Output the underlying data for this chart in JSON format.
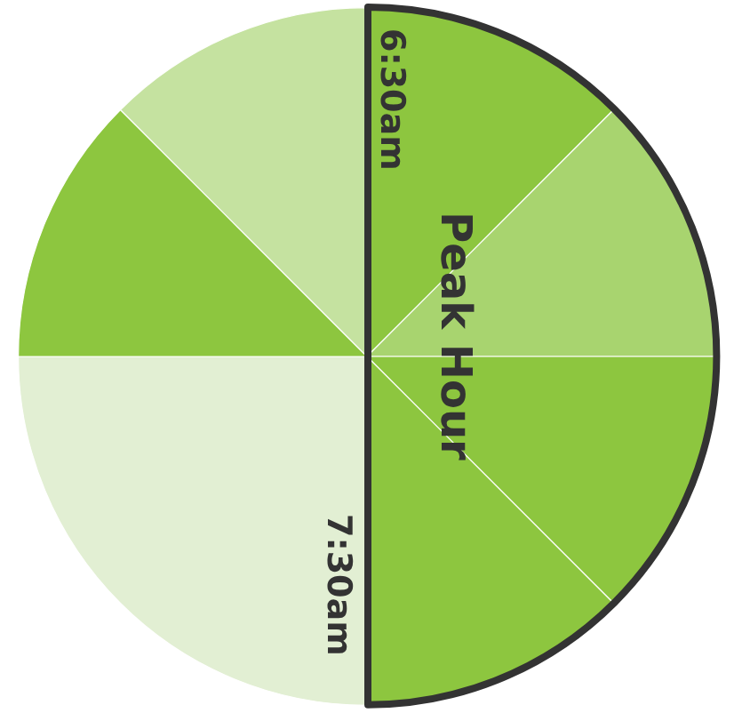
{
  "chart_data": {
    "type": "pie",
    "categories": [
      null,
      null,
      null,
      null,
      null,
      null,
      null
    ],
    "values": [
      12.5,
      12.5,
      12.5,
      12.5,
      25,
      12.5,
      12.5
    ],
    "colors": [
      "#8dc63f",
      "#a8d46f",
      "#8dc63f",
      "#8dc63f",
      "#e2efd3",
      "#8dc63f",
      "#c5e2a0"
    ],
    "annotations": [
      "6:30am",
      "Peak Hour",
      "7:30am"
    ],
    "legend": false
  }
}
